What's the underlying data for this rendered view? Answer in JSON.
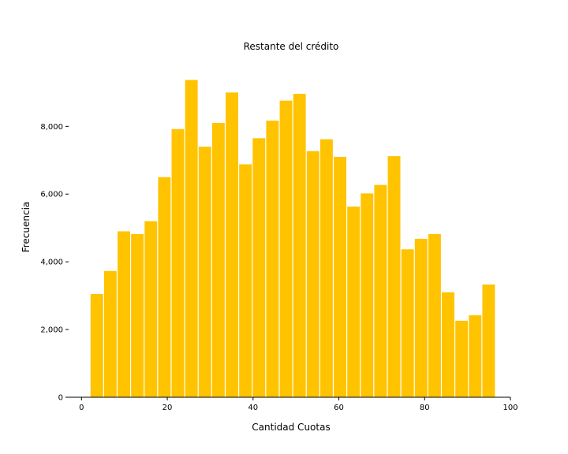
{
  "chart_data": {
    "type": "bar",
    "title": "Restante del crédito",
    "xlabel": "Cantidad Cuotas",
    "ylabel": "Frecuencia",
    "xlim": [
      -3,
      100
    ],
    "ylim": [
      0,
      9800
    ],
    "x_ticks": [
      0,
      20,
      40,
      60,
      80,
      100
    ],
    "y_ticks": [
      0,
      2000,
      4000,
      6000,
      8000
    ],
    "y_tick_labels": [
      "0",
      "2,000",
      "4,000",
      "6,000",
      "8,000"
    ],
    "bin_width": 3.15,
    "bar_color": "#FFC300",
    "grid": false,
    "bins": [
      {
        "start": 2.0,
        "end": 5.15,
        "value": 3050
      },
      {
        "start": 5.15,
        "end": 8.3,
        "value": 3730
      },
      {
        "start": 8.3,
        "end": 11.45,
        "value": 4900
      },
      {
        "start": 11.45,
        "end": 14.6,
        "value": 4820
      },
      {
        "start": 14.6,
        "end": 17.75,
        "value": 5200
      },
      {
        "start": 17.75,
        "end": 20.9,
        "value": 6500
      },
      {
        "start": 20.9,
        "end": 24.05,
        "value": 7920
      },
      {
        "start": 24.05,
        "end": 27.2,
        "value": 9370
      },
      {
        "start": 27.2,
        "end": 30.35,
        "value": 7400
      },
      {
        "start": 30.35,
        "end": 33.5,
        "value": 8100
      },
      {
        "start": 33.5,
        "end": 36.65,
        "value": 9000
      },
      {
        "start": 36.65,
        "end": 39.8,
        "value": 6880
      },
      {
        "start": 39.8,
        "end": 42.95,
        "value": 7650
      },
      {
        "start": 42.95,
        "end": 46.1,
        "value": 8170
      },
      {
        "start": 46.1,
        "end": 49.25,
        "value": 8760
      },
      {
        "start": 49.25,
        "end": 52.4,
        "value": 8960
      },
      {
        "start": 52.4,
        "end": 55.55,
        "value": 7270
      },
      {
        "start": 55.55,
        "end": 58.7,
        "value": 7620
      },
      {
        "start": 58.7,
        "end": 61.85,
        "value": 7100
      },
      {
        "start": 61.85,
        "end": 65.0,
        "value": 5630
      },
      {
        "start": 65.0,
        "end": 68.15,
        "value": 6020
      },
      {
        "start": 68.15,
        "end": 71.3,
        "value": 6270
      },
      {
        "start": 71.3,
        "end": 74.45,
        "value": 7120
      },
      {
        "start": 74.45,
        "end": 77.6,
        "value": 4370
      },
      {
        "start": 77.6,
        "end": 80.75,
        "value": 4680
      },
      {
        "start": 80.75,
        "end": 83.9,
        "value": 4820
      },
      {
        "start": 83.9,
        "end": 87.05,
        "value": 3100
      },
      {
        "start": 87.05,
        "end": 90.2,
        "value": 2260
      },
      {
        "start": 90.2,
        "end": 93.35,
        "value": 2420
      },
      {
        "start": 93.35,
        "end": 96.5,
        "value": 3330
      }
    ]
  }
}
